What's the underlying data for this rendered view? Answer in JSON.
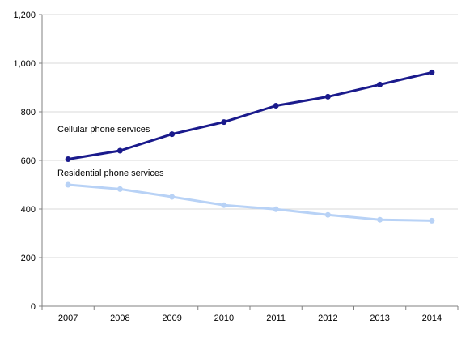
{
  "chart_data": {
    "type": "line",
    "title": "",
    "xlabel": "",
    "ylabel": "",
    "x": [
      "2007",
      "2008",
      "2009",
      "2010",
      "2011",
      "2012",
      "2013",
      "2014"
    ],
    "ylim": [
      0,
      1200
    ],
    "yticks": [
      0,
      200,
      400,
      600,
      800,
      1000,
      1200
    ],
    "ytick_labels": [
      "0",
      "200",
      "400",
      "600",
      "800",
      "1,000",
      "1,200"
    ],
    "grid": true,
    "series": [
      {
        "name": "Cellular phone services",
        "color": "#1a1a8c",
        "values": [
          605,
          640,
          708,
          758,
          825,
          862,
          912,
          962
        ]
      },
      {
        "name": "Residential phone services",
        "color": "#b8d2f6",
        "values": [
          500,
          482,
          450,
          416,
          399,
          376,
          356,
          352
        ]
      }
    ]
  }
}
